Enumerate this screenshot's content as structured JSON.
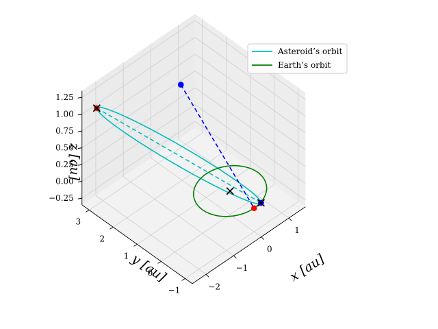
{
  "chart_data": {
    "type": "line",
    "projection": "3d",
    "title": "",
    "axes": {
      "x": {
        "label": "x [au]",
        "ticks": [
          -2,
          -1,
          0,
          1
        ],
        "tick_labels": [
          "−2",
          "−1",
          "0",
          "1"
        ],
        "range": [
          -2.5,
          1.6
        ]
      },
      "y": {
        "label": "y [au]",
        "ticks": [
          -1,
          0,
          1,
          2,
          3
        ],
        "tick_labels": [
          "−1",
          "0",
          "1",
          "2",
          "3"
        ],
        "range": [
          -1.3,
          3.3
        ]
      },
      "z": {
        "label": "z [au]",
        "ticks": [
          -0.25,
          0,
          0.25,
          0.5,
          0.75,
          1,
          1.25
        ],
        "tick_labels": [
          "−0.25",
          "0.00",
          "0.25",
          "0.50",
          "0.75",
          "1.00",
          "1.25"
        ],
        "range": [
          -0.35,
          1.35
        ]
      }
    },
    "grid": true,
    "legend": {
      "position": "top-right",
      "entries": [
        {
          "name": "Asteroid’s orbit",
          "color": "#00bfbf"
        },
        {
          "name": "Earth’s orbit",
          "color": "#008000"
        }
      ]
    },
    "series": [
      {
        "name": "Asteroid’s orbit",
        "kind": "ellipse",
        "color": "#00bfbf",
        "center": [
          -0.9,
          1.1,
          0.5
        ],
        "semi_axis_1": [
          -1.5,
          1.7,
          0.69
        ],
        "semi_axis_2": [
          0.55,
          0.55,
          -0.15
        ]
      },
      {
        "name": "Earth’s orbit",
        "kind": "ellipse",
        "color": "#008000",
        "center": [
          0,
          0,
          0
        ],
        "semi_axis_1": [
          1,
          0,
          0
        ],
        "semi_axis_2": [
          0,
          1,
          0
        ]
      }
    ],
    "dashed_lines": [
      {
        "color": "#00bfbf",
        "from": [
          -2.4,
          2.8,
          1.19
        ],
        "to": [
          0.6,
          -0.6,
          -0.19
        ]
      },
      {
        "color": "#0000ff",
        "from": [
          -0.35,
          1.65,
          1.26
        ],
        "to": [
          0.0,
          -1.0,
          0.0
        ]
      }
    ],
    "markers": [
      {
        "symbol": "x",
        "color": "#000000",
        "point": [
          0,
          0,
          0
        ]
      },
      {
        "symbol": "x",
        "color": "#000000",
        "point": [
          -2.4,
          2.8,
          1.19
        ]
      },
      {
        "symbol": "x",
        "color": "#000000",
        "point": [
          0.6,
          -0.6,
          -0.19
        ]
      },
      {
        "symbol": "dot",
        "color": "#ff0000",
        "point": [
          -2.4,
          2.8,
          1.19
        ]
      },
      {
        "symbol": "dot",
        "color": "#ff0000",
        "point": [
          0.6,
          -0.6,
          -0.19
        ]
      },
      {
        "symbol": "dot",
        "color": "#ff0000",
        "point": [
          0.0,
          -1.0,
          0.0
        ]
      },
      {
        "symbol": "dot",
        "color": "#0000ff",
        "point": [
          -0.35,
          1.65,
          1.26
        ]
      },
      {
        "symbol": "dot",
        "color": "#0000ff",
        "point": [
          0.6,
          -0.6,
          -0.19
        ]
      }
    ]
  }
}
